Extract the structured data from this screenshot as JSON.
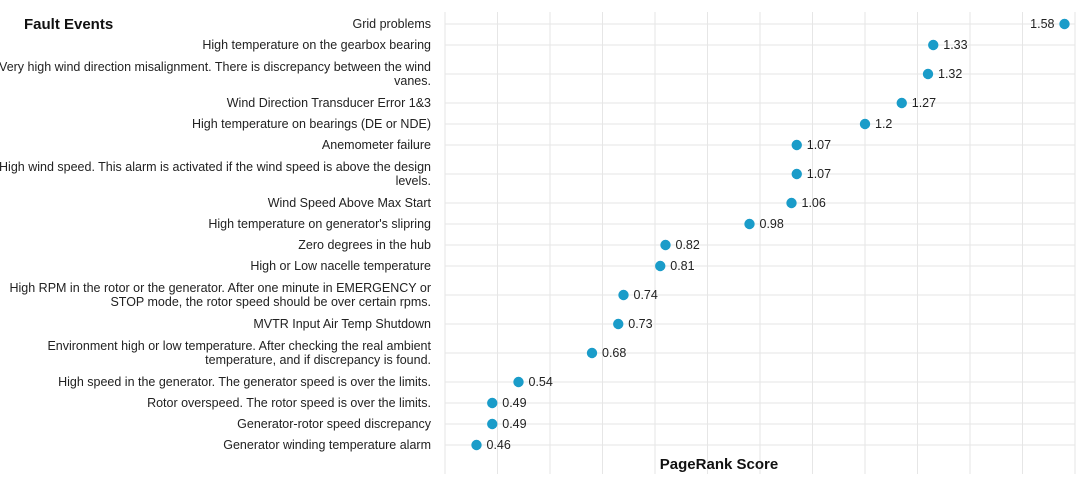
{
  "chart_data": {
    "type": "scatter",
    "title": "Fault Events",
    "xlabel": "PageRank Score",
    "ylabel": "",
    "xlim": [
      0.4,
      1.6
    ],
    "grid": true,
    "point_color": "#1a9cc9",
    "categories": [
      "Grid problems",
      "High temperature on the gearbox bearing",
      "Very high wind direction misalignment. There is discrepancy between the wind vanes.",
      "Wind Direction Transducer Error 1&3",
      "High temperature on bearings (DE or NDE)",
      "Anemometer failure",
      "High wind speed. This alarm is activated if the wind speed is above the design levels.",
      "Wind Speed Above Max Start",
      "High temperature on generator's slipring",
      "Zero degrees in the hub",
      "High or Low nacelle temperature",
      "High RPM in the rotor or the generator. After one minute in EMERGENCY or STOP mode, the rotor speed should be over certain rpms.",
      "MVTR Input Air Temp Shutdown",
      "Environment high or low temperature. After checking the real ambient temperature, and if discrepancy is found.",
      "High speed in the generator. The generator speed is over the limits.",
      "Rotor overspeed. The rotor speed is over the limits.",
      "Generator-rotor speed discrepancy",
      "Generator winding temperature alarm"
    ],
    "values": [
      1.58,
      1.33,
      1.32,
      1.27,
      1.2,
      1.07,
      1.07,
      1.06,
      0.98,
      0.82,
      0.81,
      0.74,
      0.73,
      0.68,
      0.54,
      0.49,
      0.49,
      0.46
    ]
  }
}
